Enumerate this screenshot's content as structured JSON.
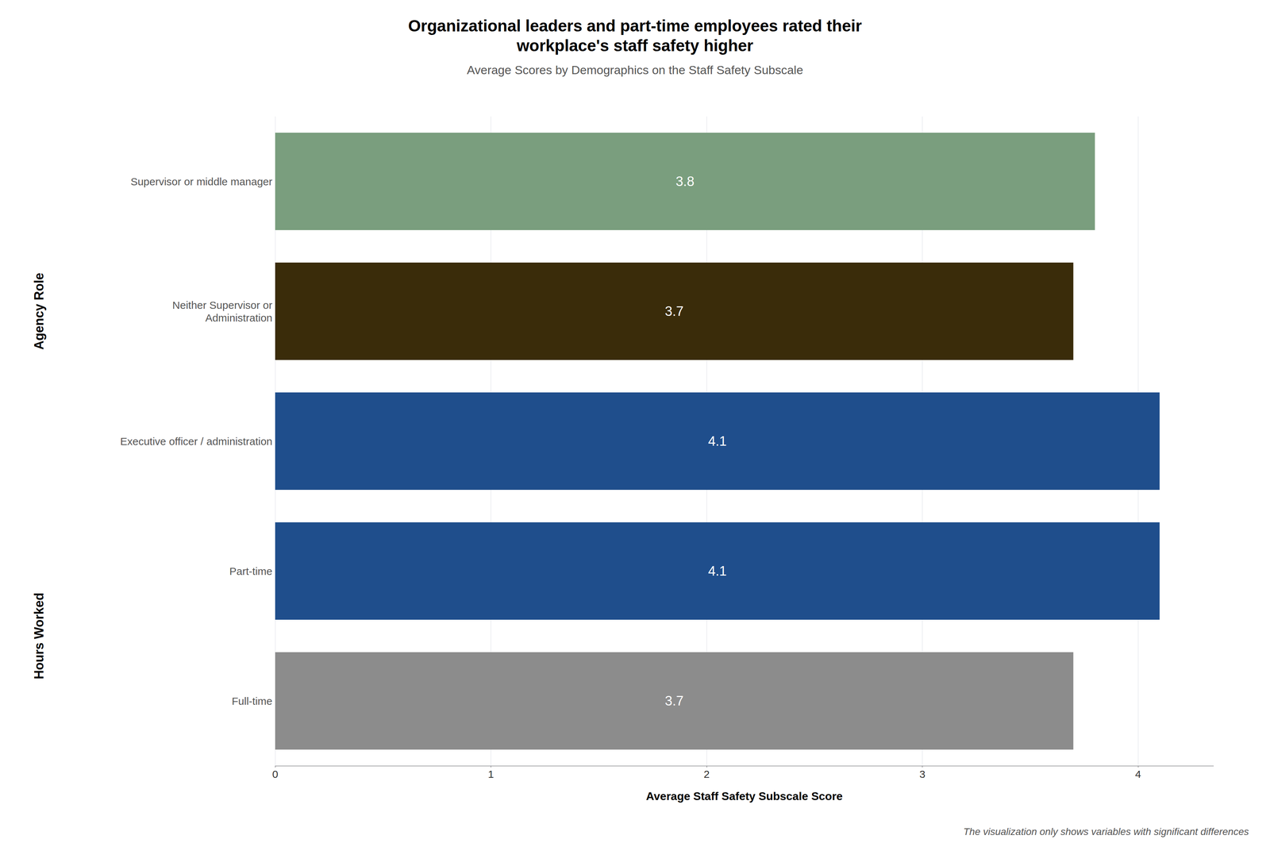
{
  "chart_data": {
    "type": "bar",
    "orientation": "horizontal",
    "title": "Organizational leaders and part-time employees rated their\nworkplace's staff safety higher",
    "subtitle": "Average Scores by Demographics on the Staff Safety Subscale",
    "xlabel": "Average Staff Safety Subscale Score",
    "annotations": [
      "The visualization only shows variables with significant differences"
    ],
    "categories": [
      "Supervisor or middle manager",
      "Neither Supervisor or\nAdministration",
      "Executive officer / administration",
      "Part-time",
      "Full-time"
    ],
    "values": [
      3.8,
      3.7,
      4.1,
      4.1,
      3.7
    ],
    "colors": [
      "#7a9e7e",
      "#3a2c0a",
      "#1f4e8c",
      "#1f4e8c",
      "#8c8c8c"
    ],
    "groups": [
      {
        "label": "Agency Role",
        "categories": [
          "Supervisor or middle manager",
          "Neither Supervisor or\nAdministration",
          "Executive officer / administration"
        ]
      },
      {
        "label": "Hours Worked",
        "categories": [
          "Part-time",
          "Full-time"
        ]
      }
    ],
    "xlim": [
      0,
      4.35
    ],
    "xticks": [
      0,
      1,
      2,
      3,
      4
    ],
    "data_labels": true,
    "grid": true
  }
}
